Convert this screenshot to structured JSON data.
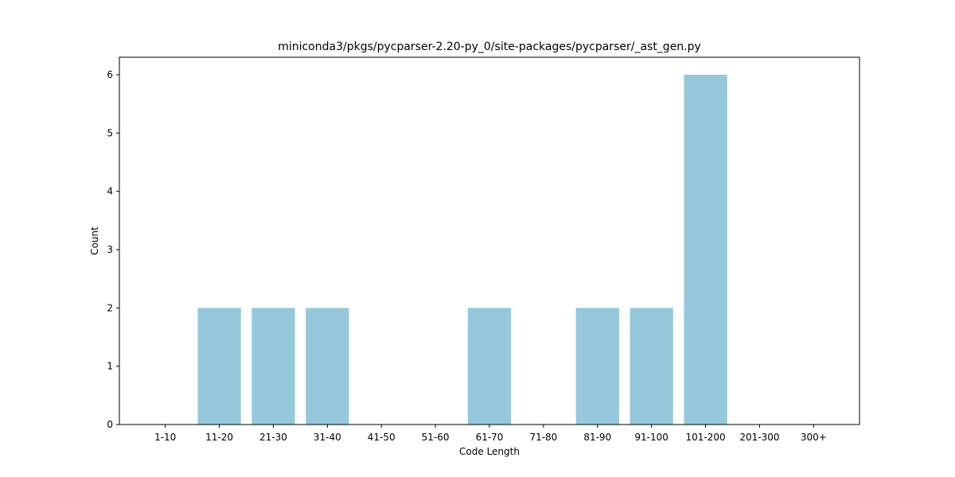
{
  "chart_data": {
    "type": "bar",
    "title": "miniconda3/pkgs/pycparser-2.20-py_0/site-packages/pycparser/_ast_gen.py",
    "xlabel": "Code Length",
    "ylabel": "Count",
    "categories": [
      "1-10",
      "11-20",
      "21-30",
      "31-40",
      "41-50",
      "51-60",
      "61-70",
      "71-80",
      "81-90",
      "91-100",
      "101-200",
      "201-300",
      "300+"
    ],
    "values": [
      0,
      2,
      2,
      2,
      0,
      0,
      2,
      0,
      2,
      2,
      6,
      0,
      0
    ],
    "ylim": [
      0,
      6.3
    ],
    "yticks": [
      0,
      1,
      2,
      3,
      4,
      5,
      6
    ],
    "bar_color": "#96c8dc",
    "grid": false
  }
}
